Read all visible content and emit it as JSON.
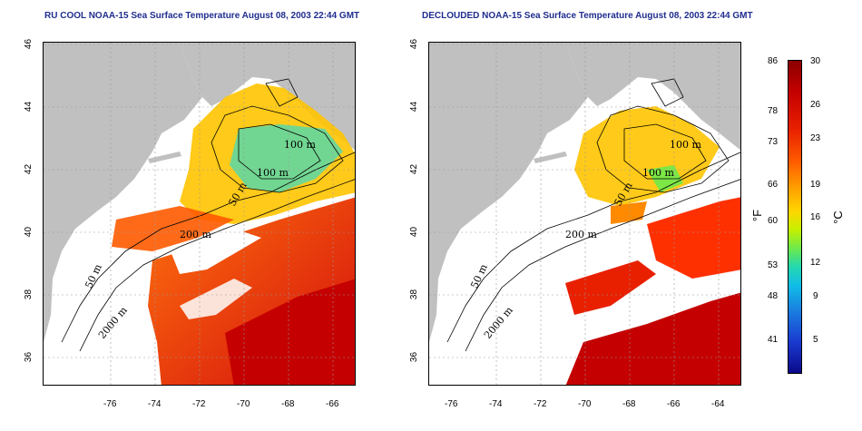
{
  "titles": {
    "left": "RU COOL NOAA-15 Sea Surface Temperature August 08, 2003 22:44 GMT",
    "right": "DECLOUDED NOAA-15 Sea Surface Temperature August 08, 2003 22:44 GMT"
  },
  "axes": {
    "x_ticks": [
      "-76",
      "-74",
      "-72",
      "-70",
      "-68",
      "-66",
      "-64"
    ],
    "y_ticks": [
      "46",
      "44",
      "42",
      "40",
      "38",
      "36"
    ],
    "x_range": [
      -77.0,
      -63.0
    ],
    "y_range": [
      35.0,
      46.0
    ]
  },
  "contour_labels": {
    "left": [
      "100 m",
      "100 m",
      "50 m",
      "200 m",
      "50 m",
      "2000 m"
    ],
    "right": [
      "100 m",
      "100 m",
      "50 m",
      "200 m",
      "50 m",
      "2000 m"
    ]
  },
  "colorbar": {
    "fahrenheit_label": "°F",
    "celsius_label": "°C",
    "fahrenheit_ticks": [
      "86",
      "78",
      "73",
      "66",
      "60",
      "53",
      "48",
      "41"
    ],
    "celsius_ticks": [
      "30",
      "26",
      "23",
      "19",
      "16",
      "12",
      "9",
      "5"
    ],
    "celsius_range": [
      2,
      30
    ]
  },
  "colors": {
    "land": "#c0c0c0",
    "ocean_nodata": "#ffffff",
    "title": "#1f2d8f",
    "contour": "#000000"
  }
}
